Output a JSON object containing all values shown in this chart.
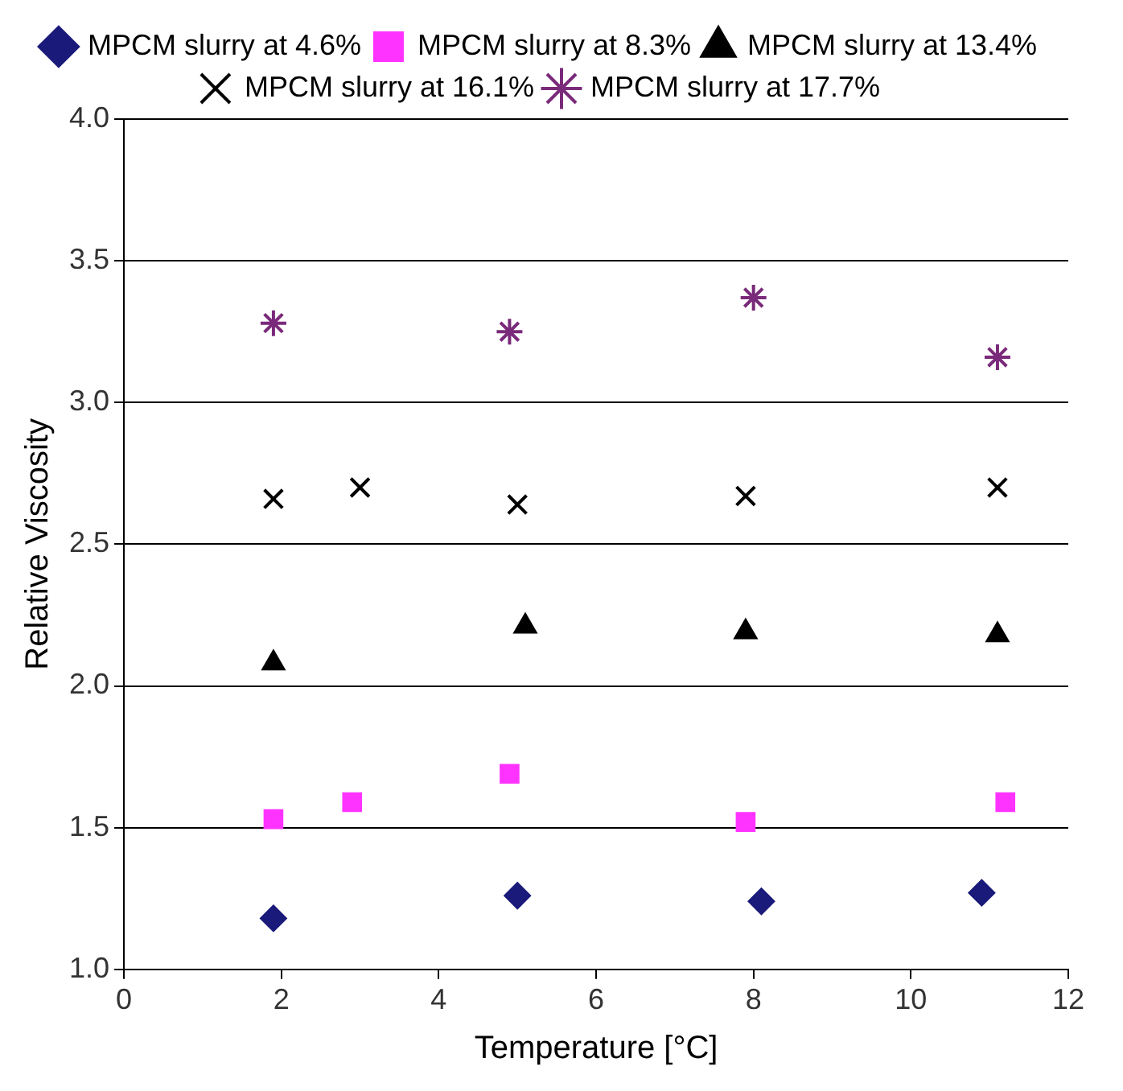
{
  "chart_data": {
    "type": "scatter",
    "xlabel": "Temperature [°C]",
    "ylabel": "Relative Viscosity",
    "xlim": [
      0,
      12
    ],
    "xticks": [
      0,
      2,
      4,
      6,
      8,
      10,
      12
    ],
    "ylim": [
      1,
      4
    ],
    "yticks": [
      {
        "value": 1,
        "label": "1.0"
      },
      {
        "value": 1.5,
        "label": "1.5"
      },
      {
        "value": 2,
        "label": "2.0"
      },
      {
        "value": 2.5,
        "label": "2.5"
      },
      {
        "value": 3,
        "label": "3.0"
      },
      {
        "value": 3.5,
        "label": "3.5"
      },
      {
        "value": 4,
        "label": "4.0"
      }
    ],
    "grid": "y",
    "legend": "top",
    "series": [
      {
        "name": "MPCM slurry at 4.6%",
        "color": "#1a1a7a",
        "marker": "diamond",
        "x": [
          1.9,
          5.0,
          8.1,
          10.9
        ],
        "values": [
          1.18,
          1.26,
          1.24,
          1.27
        ]
      },
      {
        "name": "MPCM slurry at 8.3%",
        "color": "#ff33ff",
        "marker": "square",
        "x": [
          1.9,
          2.9,
          4.9,
          7.9,
          11.2
        ],
        "values": [
          1.53,
          1.59,
          1.69,
          1.52,
          1.59
        ]
      },
      {
        "name": "MPCM slurry at 13.4%",
        "color": "#000000",
        "marker": "triangle",
        "x": [
          1.9,
          5.1,
          7.9,
          11.1
        ],
        "values": [
          2.08,
          2.21,
          2.19,
          2.18
        ]
      },
      {
        "name": "MPCM slurry at 16.1%",
        "color": "#000000",
        "marker": "cross",
        "x": [
          1.9,
          3.0,
          5.0,
          7.9,
          11.1
        ],
        "values": [
          2.66,
          2.7,
          2.64,
          2.67,
          2.7
        ]
      },
      {
        "name": "MPCM slurry at 17.7%",
        "color": "#7a2a7a",
        "x": [
          1.9,
          4.9,
          8.0,
          11.1
        ],
        "values": [
          3.28,
          3.25,
          3.37,
          3.16
        ]
      }
    ]
  }
}
